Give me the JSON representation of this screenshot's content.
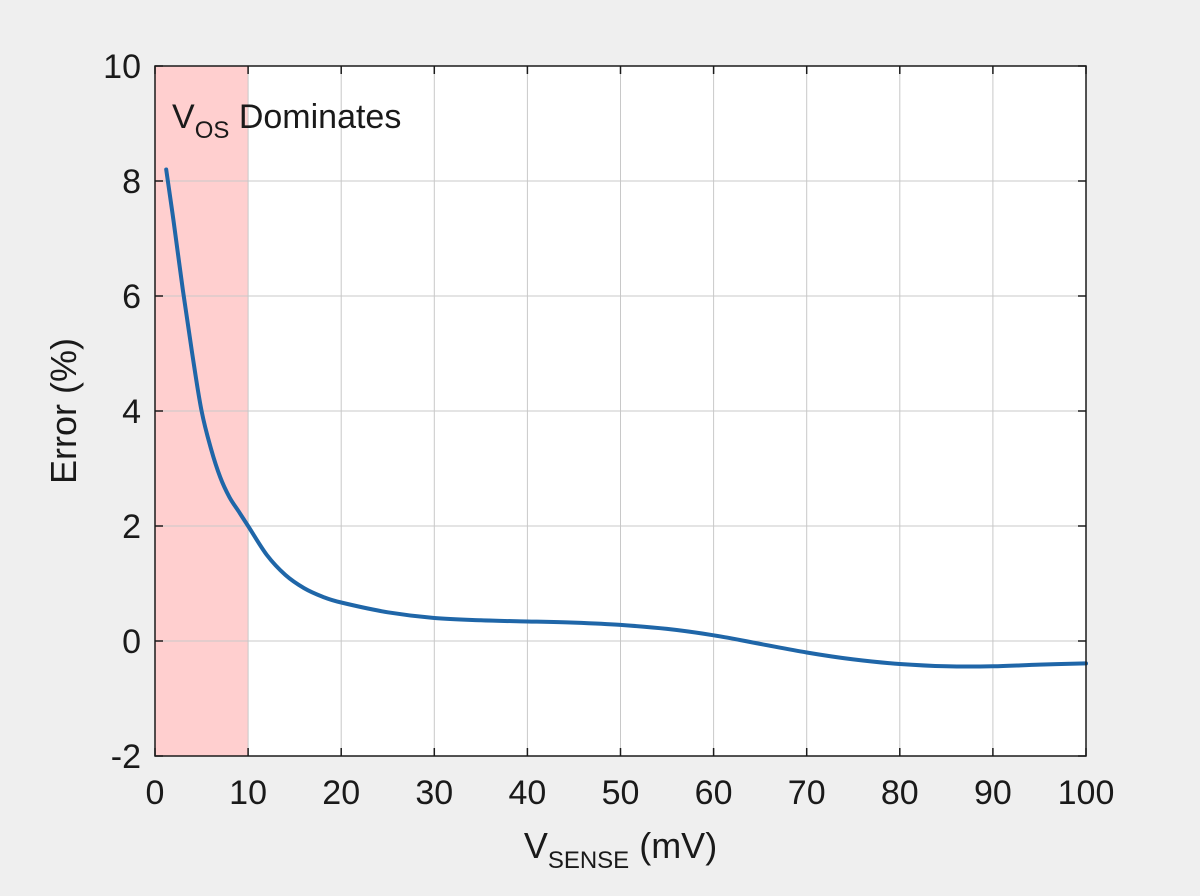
{
  "chart_data": {
    "type": "line",
    "xlabel": {
      "main": "V",
      "sub": "SENSE",
      "unit": " (mV)"
    },
    "ylabel": "Error (%)",
    "xlim": [
      0,
      100
    ],
    "ylim": [
      -2,
      10
    ],
    "xticks": [
      0,
      10,
      20,
      30,
      40,
      50,
      60,
      70,
      80,
      90,
      100
    ],
    "yticks": [
      -2,
      0,
      2,
      4,
      6,
      8,
      10
    ],
    "grid": true,
    "shaded_region": {
      "x_range": [
        0,
        10
      ],
      "color": "#ffcfcf",
      "label": {
        "main": "V",
        "sub": "OS",
        "rest": " Dominates"
      }
    },
    "series": [
      {
        "color": "#1f66a8",
        "x": [
          1.2,
          2,
          3,
          4,
          5,
          6,
          7,
          8,
          9,
          10,
          12,
          14,
          16,
          18,
          20,
          25,
          30,
          35,
          40,
          45,
          50,
          55,
          60,
          65,
          70,
          75,
          80,
          85,
          90,
          95,
          100
        ],
        "y": [
          8.2,
          7.3,
          6.1,
          5.0,
          4.0,
          3.35,
          2.85,
          2.5,
          2.25,
          2.0,
          1.5,
          1.15,
          0.92,
          0.77,
          0.67,
          0.5,
          0.4,
          0.36,
          0.34,
          0.32,
          0.28,
          0.21,
          0.1,
          -0.05,
          -0.2,
          -0.32,
          -0.4,
          -0.44,
          -0.44,
          -0.41,
          -0.39
        ]
      }
    ]
  }
}
